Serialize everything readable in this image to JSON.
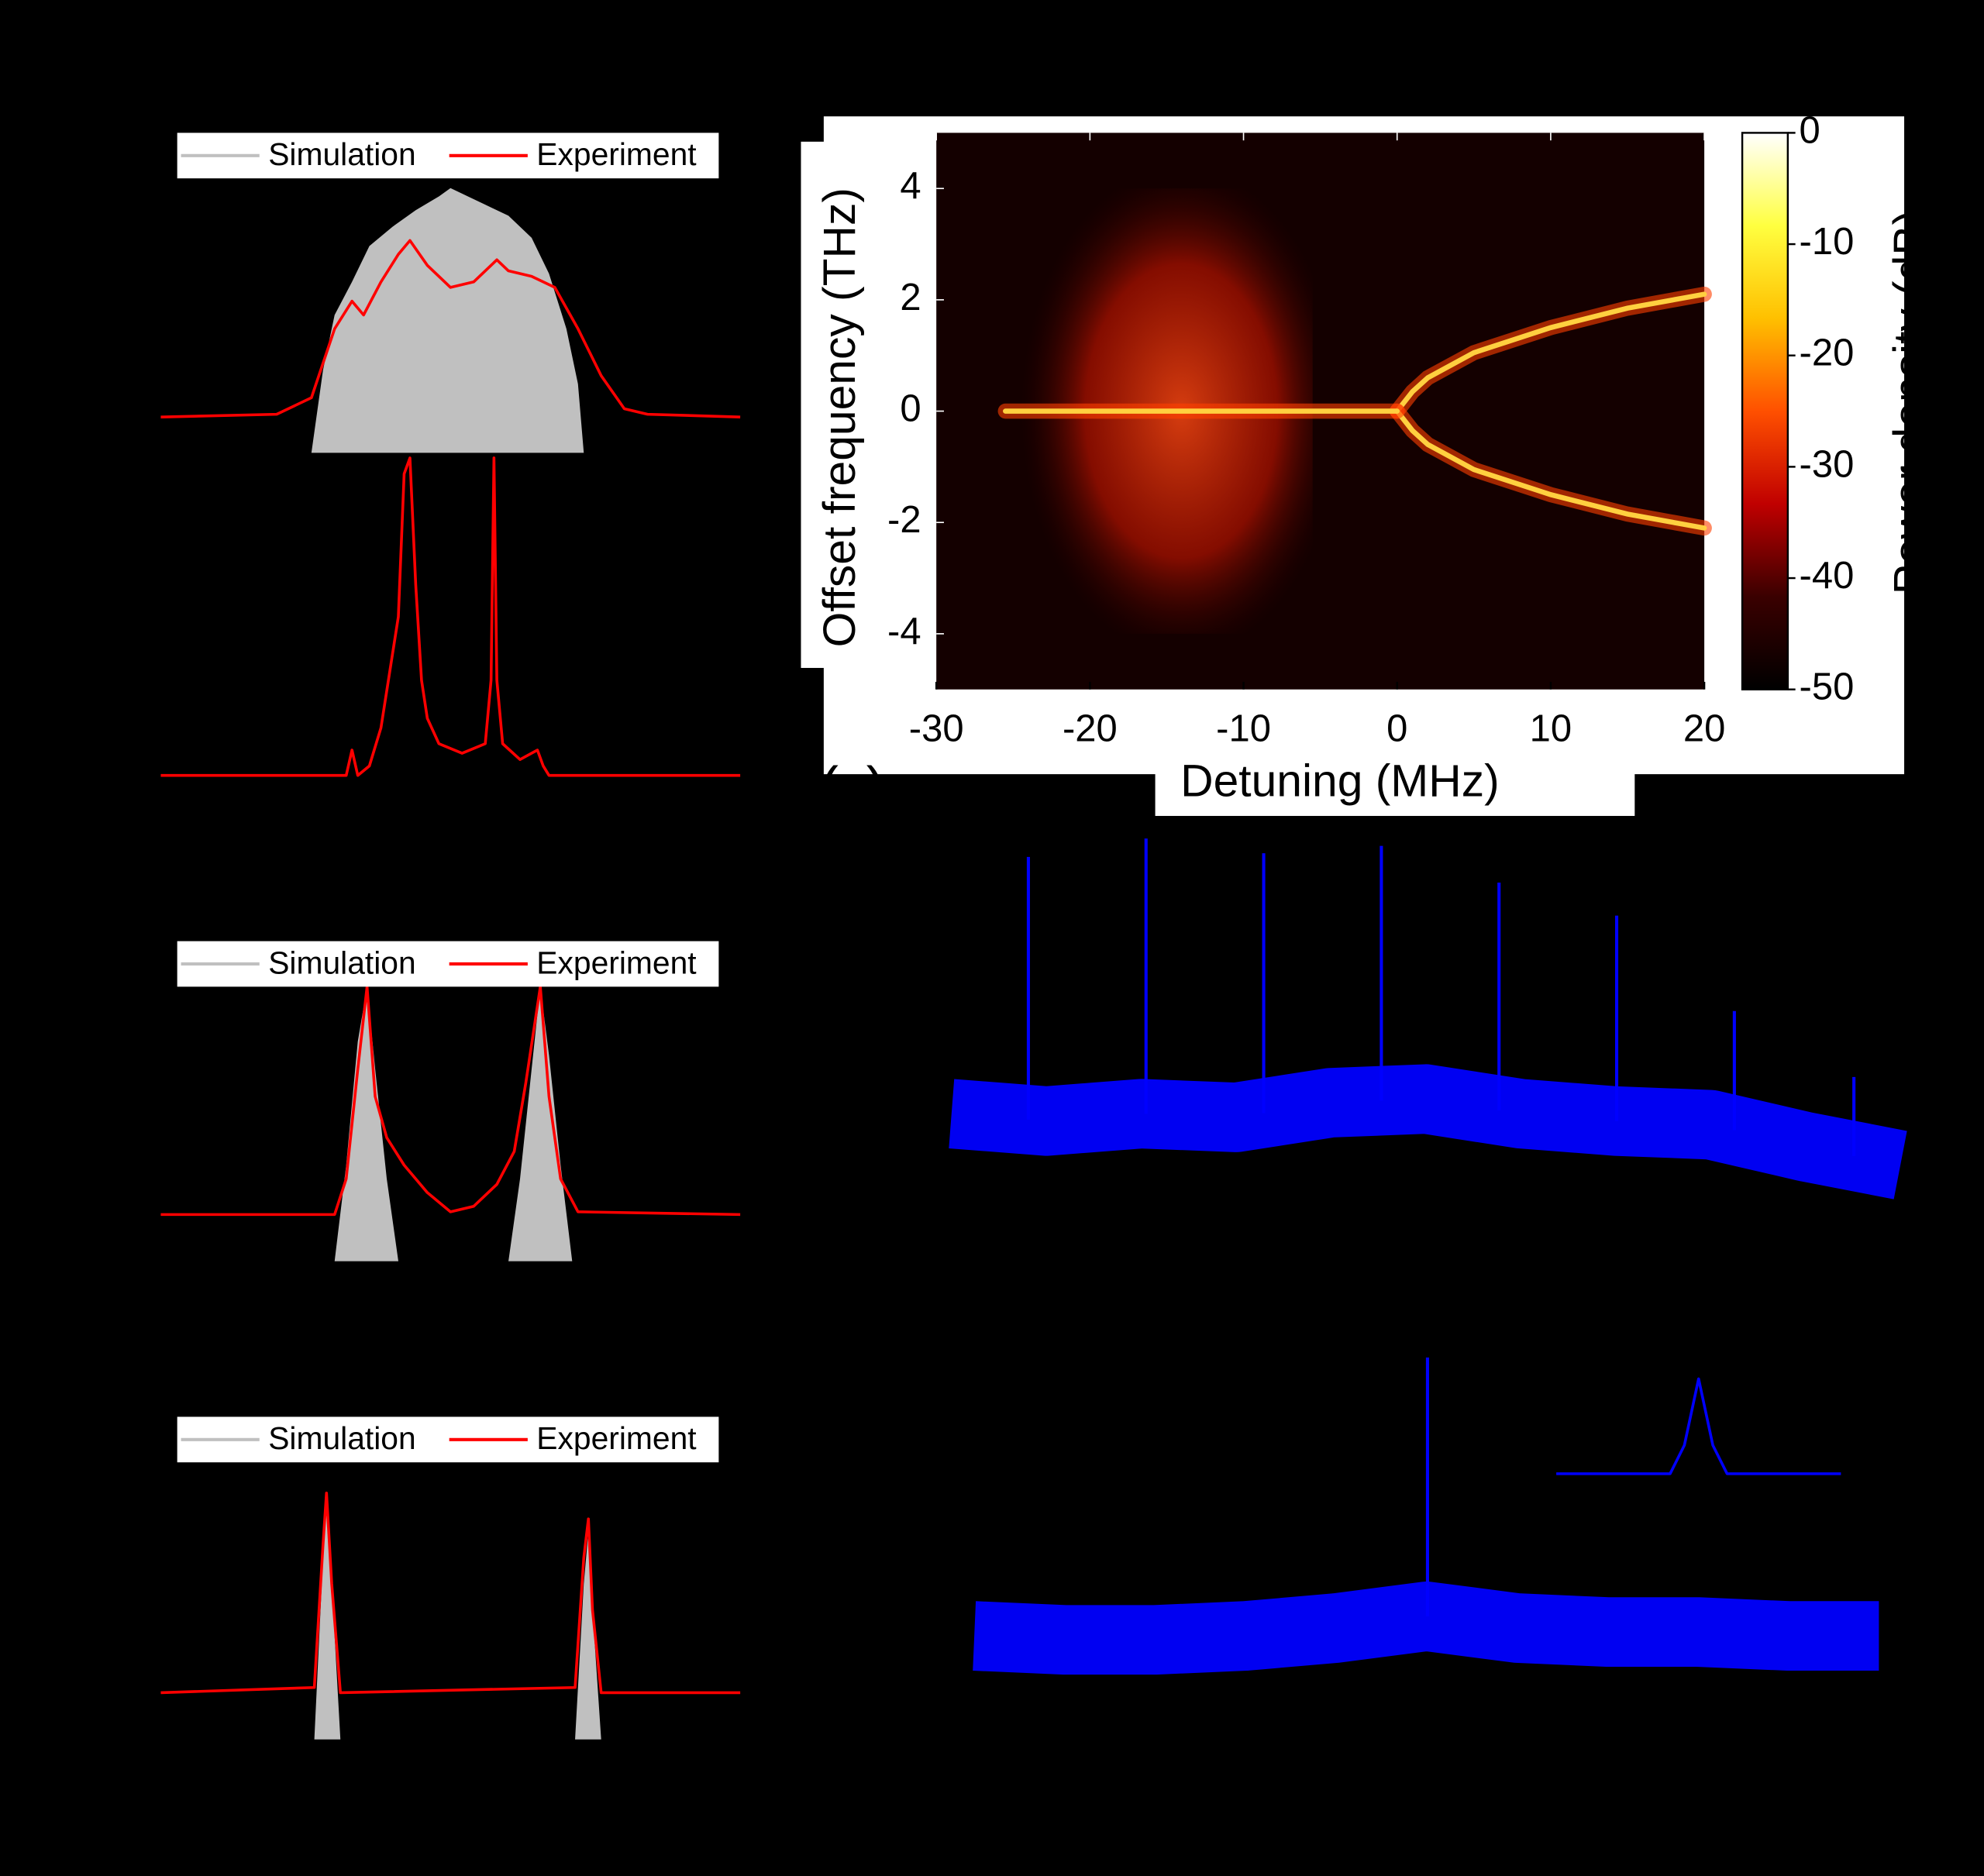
{
  "chart_data": [
    {
      "type": "line",
      "legend": true,
      "xlim": [
        0,
        100
      ],
      "ylim": [
        0,
        1
      ],
      "series": [
        {
          "name": "Simulation",
          "color": "#c0c0c0",
          "kind": "area",
          "x": [
            0,
            26,
            28,
            30,
            33,
            36,
            40,
            44,
            48,
            50,
            52,
            56,
            60,
            64,
            67,
            70,
            72,
            73,
            100
          ],
          "values": [
            0,
            0,
            0.3,
            0.5,
            0.62,
            0.75,
            0.82,
            0.88,
            0.93,
            0.96,
            0.94,
            0.9,
            0.86,
            0.78,
            0.65,
            0.45,
            0.25,
            0,
            0
          ]
        },
        {
          "name": "Experiment",
          "color": "#ff0000",
          "kind": "line",
          "x": [
            0,
            20,
            26,
            30,
            33,
            35,
            38,
            41,
            43,
            46,
            50,
            54,
            57,
            58,
            60,
            64,
            68,
            72,
            76,
            80,
            84,
            100
          ],
          "values": [
            0.13,
            0.14,
            0.2,
            0.45,
            0.55,
            0.5,
            0.62,
            0.72,
            0.77,
            0.68,
            0.6,
            0.62,
            0.68,
            0.7,
            0.66,
            0.64,
            0.6,
            0.45,
            0.28,
            0.16,
            0.14,
            0.13
          ]
        }
      ]
    },
    {
      "type": "line",
      "xlim": [
        0,
        100
      ],
      "ylim": [
        0,
        1
      ],
      "series": [
        {
          "color": "#ff0000",
          "kind": "line",
          "x": [
            0,
            32,
            33,
            34,
            36,
            38,
            41,
            42,
            43,
            44,
            45,
            46,
            48,
            52,
            56,
            57,
            57.5,
            58,
            59,
            62,
            65,
            66,
            67,
            70,
            100
          ],
          "values": [
            0,
            0,
            0.08,
            0,
            0.03,
            0.15,
            0.5,
            0.95,
            1,
            0.6,
            0.3,
            0.18,
            0.1,
            0.07,
            0.1,
            0.3,
            1,
            0.3,
            0.1,
            0.05,
            0.08,
            0.03,
            0,
            0,
            0
          ]
        }
      ]
    },
    {
      "type": "heatmap",
      "panel_label": "(c)",
      "xlabel": "Detuning (MHz)",
      "ylabel": "Offset frequency (THz)",
      "colorbar_label": "Power density (dB)",
      "xlim": [
        -30,
        20
      ],
      "ylim": [
        -5,
        5
      ],
      "xticks": [
        -30,
        -20,
        -10,
        0,
        10,
        20
      ],
      "yticks": [
        -4,
        -2,
        0,
        2,
        4
      ],
      "clim": [
        -50,
        0
      ],
      "cticks": [
        0,
        -10,
        -20,
        -30,
        -40,
        -50
      ],
      "colormap": [
        "#000000",
        "#3a0000",
        "#c00000",
        "#ff5000",
        "#ffc000",
        "#ffff40",
        "#ffffff"
      ],
      "series": [
        {
          "color": "#ffd040",
          "x": [
            0,
            1,
            2,
            5,
            10,
            15,
            20
          ],
          "values": [
            0,
            0.35,
            0.6,
            1.05,
            1.5,
            1.85,
            2.1
          ]
        },
        {
          "color": "#ffd040",
          "x": [
            0,
            1,
            2,
            5,
            10,
            15,
            20
          ],
          "values": [
            0,
            -0.35,
            -0.6,
            -1.05,
            -1.5,
            -1.85,
            -2.1
          ]
        },
        {
          "color": "#ffd040",
          "x": [
            -25.5,
            -6,
            -2,
            0
          ],
          "values": [
            0,
            0,
            0,
            0
          ]
        }
      ]
    },
    {
      "type": "line",
      "legend": true,
      "xlim": [
        0,
        100
      ],
      "ylim": [
        0,
        1
      ],
      "series": [
        {
          "name": "Simulation",
          "color": "#c0c0c0",
          "kind": "area",
          "x": [
            0,
            30,
            32,
            34,
            35.6,
            37,
            39,
            41,
            60,
            62,
            64,
            65.5,
            67,
            69,
            71,
            100
          ],
          "values": [
            0,
            0,
            0.35,
            0.8,
            1,
            0.7,
            0.3,
            0,
            0,
            0.3,
            0.7,
            1,
            0.75,
            0.35,
            0,
            0
          ]
        },
        {
          "name": "Experiment",
          "color": "#ff0000",
          "kind": "line",
          "x": [
            0,
            30,
            32,
            34,
            35.6,
            37,
            39,
            42,
            46,
            50,
            54,
            58,
            61,
            63,
            65.5,
            67,
            69,
            72,
            100
          ],
          "values": [
            0.17,
            0.17,
            0.3,
            0.7,
            1,
            0.6,
            0.45,
            0.35,
            0.25,
            0.18,
            0.2,
            0.28,
            0.4,
            0.65,
            1,
            0.6,
            0.3,
            0.18,
            0.17
          ]
        }
      ]
    },
    {
      "type": "line",
      "xlim": [
        0,
        100
      ],
      "ylim": [
        0,
        1
      ],
      "series": [
        {
          "color": "#0000ff",
          "kind": "band",
          "x": [
            0,
            10,
            20,
            30,
            40,
            50,
            60,
            70,
            80,
            90,
            100
          ],
          "values": [
            0.24,
            0.22,
            0.24,
            0.23,
            0.27,
            0.28,
            0.24,
            0.22,
            0.21,
            0.15,
            0.1
          ]
        },
        {
          "color": "#0000ff",
          "kind": "stem",
          "x": [
            8.1,
            20.5,
            32.9,
            45.3,
            57.7,
            70.1,
            82.5,
            95.1
          ],
          "values": [
            0.94,
            0.99,
            0.95,
            0.97,
            0.87,
            0.78,
            0.52,
            0.34
          ]
        }
      ]
    },
    {
      "type": "line",
      "legend": true,
      "xlim": [
        0,
        100
      ],
      "ylim": [
        0,
        1
      ],
      "series": [
        {
          "name": "Simulation",
          "color": "#c0c0c0",
          "kind": "area",
          "x": [
            0,
            26.5,
            28,
            28.6,
            29.5,
            31,
            71.5,
            73,
            73.8,
            74.5,
            76,
            100
          ],
          "values": [
            0,
            0,
            0.7,
            0.9,
            0.6,
            0,
            0,
            0.6,
            0.8,
            0.5,
            0,
            0
          ]
        },
        {
          "name": "Experiment",
          "color": "#ff0000",
          "kind": "line",
          "x": [
            0,
            26.5,
            28,
            28.6,
            29.5,
            31,
            71.5,
            73,
            73.8,
            74.5,
            76,
            100
          ],
          "values": [
            0.18,
            0.2,
            0.75,
            0.95,
            0.6,
            0.18,
            0.2,
            0.7,
            0.85,
            0.5,
            0.18,
            0.18
          ]
        }
      ]
    },
    {
      "type": "line",
      "xlim": [
        0,
        100
      ],
      "ylim": [
        0,
        1
      ],
      "series": [
        {
          "color": "#0000ff",
          "kind": "band",
          "x": [
            0,
            10,
            20,
            30,
            40,
            50,
            60,
            70,
            80,
            90,
            100
          ],
          "values": [
            0.28,
            0.27,
            0.27,
            0.28,
            0.3,
            0.33,
            0.3,
            0.29,
            0.29,
            0.28,
            0.28
          ]
        },
        {
          "color": "#0000ff",
          "kind": "stem",
          "x": [
            50.1
          ],
          "values": [
            0.99
          ]
        }
      ]
    },
    {
      "type": "line",
      "xlim": [
        0,
        100
      ],
      "ylim": [
        0,
        1
      ],
      "series": [
        {
          "color": "#0000ff",
          "kind": "line",
          "x": [
            0,
            40,
            45,
            50,
            55,
            60,
            100
          ],
          "values": [
            0,
            0,
            0.3,
            1,
            0.3,
            0,
            0
          ]
        }
      ]
    }
  ]
}
